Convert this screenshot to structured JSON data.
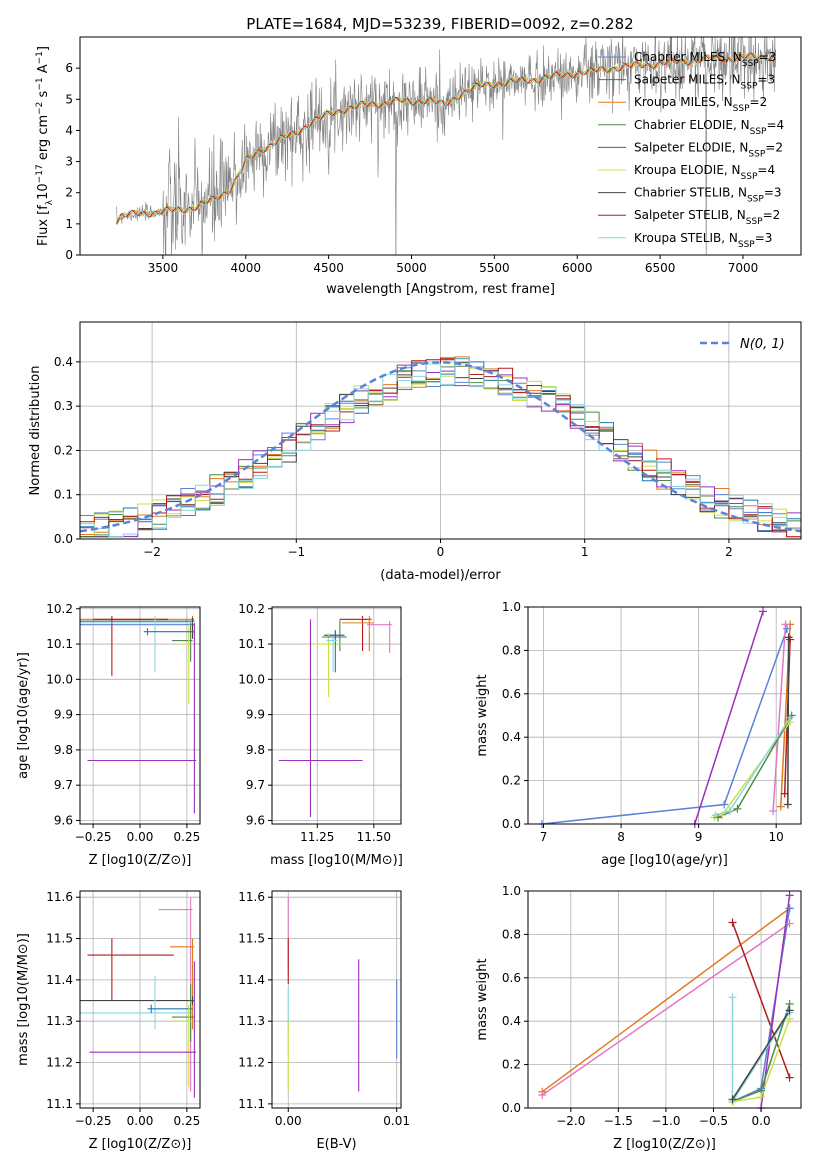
{
  "figure_title": "PLATE=1684, MJD=53239, FIBERID=0092, z=0.282",
  "colors": {
    "chabrier_miles": "#5b82d8",
    "salpeter_miles": "#1f77b4",
    "kroupa_miles": "#e07b1f",
    "chabrier_elodie": "#4f8a4a",
    "salpeter_elodie": "#9b30b9",
    "kroupa_elodie": "#c9e04a",
    "chabrier_stelib": "#444444",
    "salpeter_stelib": "#b31b1b",
    "kroupa_stelib": "#8ad6dc",
    "pink": "#e377c2",
    "data": "#808080",
    "normal": "#5b82d8"
  },
  "legend_models": [
    {
      "key": "chabrier_miles",
      "imf": "Chabrier",
      "lib": "MILES",
      "n": "3"
    },
    {
      "key": "salpeter_miles",
      "imf": "Salpeter",
      "lib": "MILES",
      "n": "3"
    },
    {
      "key": "kroupa_miles",
      "imf": "Kroupa",
      "lib": "MILES",
      "n": "2"
    },
    {
      "key": "chabrier_elodie",
      "imf": "Chabrier",
      "lib": "ELODIE",
      "n": "4"
    },
    {
      "key": "salpeter_elodie",
      "imf": "Salpeter",
      "lib": "ELODIE",
      "n": "2"
    },
    {
      "key": "kroupa_elodie",
      "imf": "Kroupa",
      "lib": "ELODIE",
      "n": "4"
    },
    {
      "key": "chabrier_stelib",
      "imf": "Chabrier",
      "lib": "STELIB",
      "n": "3"
    },
    {
      "key": "salpeter_stelib",
      "imf": "Salpeter",
      "lib": "STELIB",
      "n": "2"
    },
    {
      "key": "kroupa_stelib",
      "imf": "Kroupa",
      "lib": "STELIB",
      "n": "3"
    }
  ],
  "chart_data": [
    {
      "id": "spectrum",
      "type": "line",
      "xlabel": "wavelength [Angstrom, rest frame]",
      "ylabel": "Flux [f",
      "ylabel_sub": "λ",
      "ylabel_rest": "10",
      "ylabel_exp1": "−17",
      "ylabel_mid": " erg cm",
      "ylabel_exp2": "−2",
      "ylabel_mid2": " s",
      "ylabel_exp3": "−1",
      "ylabel_mid3": " A",
      "ylabel_exp4": "−1",
      "ylabel_end": "]",
      "xlim": [
        3000,
        7350
      ],
      "ylim": [
        0,
        7
      ],
      "xticks": [
        3500,
        4000,
        4500,
        5000,
        5500,
        6000,
        6500,
        7000
      ],
      "yticks": [
        0,
        1,
        2,
        3,
        4,
        5,
        6
      ],
      "model_continuum": [
        [
          3220,
          1.1
        ],
        [
          3250,
          1.25
        ],
        [
          3400,
          1.35
        ],
        [
          3500,
          1.4
        ],
        [
          3600,
          1.45
        ],
        [
          3700,
          1.55
        ],
        [
          3800,
          1.75
        ],
        [
          3900,
          2.1
        ],
        [
          3950,
          2.5
        ],
        [
          4000,
          3.0
        ],
        [
          4100,
          3.4
        ],
        [
          4200,
          3.7
        ],
        [
          4300,
          3.9
        ],
        [
          4400,
          4.3
        ],
        [
          4500,
          4.5
        ],
        [
          4600,
          4.7
        ],
        [
          4700,
          4.8
        ],
        [
          4800,
          4.85
        ],
        [
          4900,
          4.95
        ],
        [
          5000,
          4.9
        ],
        [
          5100,
          5.0
        ],
        [
          5200,
          4.8
        ],
        [
          5300,
          5.2
        ],
        [
          5400,
          5.4
        ],
        [
          5500,
          5.5
        ],
        [
          5600,
          5.55
        ],
        [
          5700,
          5.6
        ],
        [
          5800,
          5.7
        ],
        [
          5900,
          5.75
        ],
        [
          6000,
          5.85
        ],
        [
          6100,
          5.9
        ],
        [
          6200,
          6.0
        ],
        [
          6300,
          6.05
        ],
        [
          6400,
          6.1
        ],
        [
          6500,
          6.15
        ],
        [
          6600,
          6.2
        ],
        [
          6700,
          6.25
        ],
        [
          6800,
          6.3
        ],
        [
          6900,
          6.3
        ],
        [
          7000,
          6.35
        ],
        [
          7100,
          6.35
        ],
        [
          7200,
          6.4
        ]
      ]
    },
    {
      "id": "residuals",
      "type": "histogram",
      "xlabel": "(data-model)/error",
      "ylabel": "Normed distribution",
      "xlim": [
        -2.5,
        2.5
      ],
      "ylim": [
        0,
        0.49
      ],
      "xticks": [
        -2,
        -1,
        0,
        1,
        2
      ],
      "yticks": [
        0.0,
        0.1,
        0.2,
        0.3,
        0.4
      ],
      "normal_legend": "N(0, 1)",
      "bin_width": 0.1
    },
    {
      "id": "age_vs_Z",
      "type": "errorbar",
      "xlabel": "Z [log10(Z/Z⊙)]",
      "ylabel": "age  [log10(age/yr)]",
      "xlim": [
        -0.32,
        0.32
      ],
      "ylim": [
        9.59,
        10.205
      ],
      "xticks": [
        -0.25,
        0.0,
        0.25
      ],
      "xticklabels": [
        "−0.25",
        "0.00",
        "0.25"
      ],
      "yticks": [
        9.6,
        9.7,
        9.8,
        9.9,
        10.0,
        10.1,
        10.2
      ],
      "points": [
        {
          "c": "chabrier_miles",
          "x": 0.28,
          "y": 10.155,
          "xerr": [
            0.6,
            0.01
          ],
          "yerr": [
            0.02,
            0.01
          ]
        },
        {
          "c": "kroupa_miles",
          "x": 0.28,
          "y": 10.17,
          "xerr": [
            0.6,
            0.01
          ],
          "yerr": [
            0.01,
            0.01
          ]
        },
        {
          "c": "salpeter_stelib",
          "x": -0.15,
          "y": 10.17,
          "xerr": [
            0.1,
            0.3
          ],
          "yerr": [
            0.16,
            0.01
          ]
        },
        {
          "c": "chabrier_stelib",
          "x": 0.28,
          "y": 10.165,
          "xerr": [
            0.6,
            0.01
          ],
          "yerr": [
            0.05,
            0.01
          ]
        },
        {
          "c": "kroupa_stelib",
          "x": 0.08,
          "y": 10.16,
          "xerr": [
            0.4,
            0.2
          ],
          "yerr": [
            0.14,
            0.02
          ]
        },
        {
          "c": "chabrier_elodie",
          "x": 0.27,
          "y": 10.11,
          "xerr": [
            0.1,
            0.01
          ],
          "yerr": [
            0.06,
            0.05
          ]
        },
        {
          "c": "kroupa_elodie",
          "x": 0.26,
          "y": 10.1,
          "xerr": [
            0.05,
            0.01
          ],
          "yerr": [
            0.17,
            0.05
          ]
        },
        {
          "c": "salpeter_miles",
          "x": 0.04,
          "y": 10.135,
          "xerr": [
            0.02,
            0.25
          ],
          "yerr": [
            0.01,
            0.01
          ]
        },
        {
          "c": "salpeter_elodie",
          "x": 0.29,
          "y": 9.77,
          "xerr": [
            0.57,
            0.01
          ],
          "yerr": [
            0.15,
            0.39
          ]
        }
      ]
    },
    {
      "id": "age_vs_mass",
      "type": "errorbar",
      "xlabel": "mass [log10(M/M⊙)]",
      "ylabel": "",
      "xlim": [
        11.05,
        11.62
      ],
      "ylim": [
        9.59,
        10.205
      ],
      "xticks": [
        11.25,
        11.5
      ],
      "xticklabels": [
        "11.25",
        "11.50"
      ],
      "yticks": [
        9.6,
        9.7,
        9.8,
        9.9,
        10.0,
        10.1,
        10.2
      ],
      "points": [
        {
          "c": "salpeter_stelib",
          "x": 11.45,
          "y": 10.17,
          "xerr": [
            0.1,
            0.04
          ],
          "yerr": [
            0.09,
            0.01
          ]
        },
        {
          "c": "kroupa_miles",
          "x": 11.48,
          "y": 10.16,
          "xerr": [
            0.12,
            0.02
          ],
          "yerr": [
            0.08,
            0.02
          ]
        },
        {
          "c": "pink",
          "x": 11.57,
          "y": 10.155,
          "xerr": [
            0.1,
            0.01
          ],
          "yerr": [
            0.08,
            0.01
          ]
        },
        {
          "c": "chabrier_stelib",
          "x": 11.33,
          "y": 10.125,
          "xerr": [
            0.05,
            0.04
          ],
          "yerr": [
            0.01,
            0.01
          ]
        },
        {
          "c": "chabrier_elodie",
          "x": 11.35,
          "y": 10.12,
          "xerr": [
            0.08,
            0.02
          ],
          "yerr": [
            0.04,
            0.05
          ]
        },
        {
          "c": "kroupa_elodie",
          "x": 11.3,
          "y": 10.1,
          "xerr": [
            0.08,
            0.05
          ],
          "yerr": [
            0.15,
            0.03
          ]
        },
        {
          "c": "salpeter_miles",
          "x": 11.33,
          "y": 10.12,
          "xerr": [
            0.04,
            0.05
          ],
          "yerr": [
            0.1,
            0.02
          ]
        },
        {
          "c": "kroupa_stelib",
          "x": 11.32,
          "y": 10.11,
          "xerr": [
            0.03,
            0.02
          ],
          "yerr": [
            0.09,
            0.01
          ]
        },
        {
          "c": "salpeter_elodie",
          "x": 11.22,
          "y": 9.77,
          "xerr": [
            0.14,
            0.23
          ],
          "yerr": [
            0.16,
            0.4
          ]
        }
      ]
    },
    {
      "id": "weight_vs_age",
      "type": "line",
      "xlabel": "age  [log10(age/yr)]",
      "ylabel": "mass weight",
      "xlim": [
        6.8,
        10.32
      ],
      "ylim": [
        0,
        1
      ],
      "xticks": [
        7,
        8,
        9,
        10
      ],
      "yticks": [
        0.0,
        0.2,
        0.4,
        0.6,
        0.8,
        1.0
      ],
      "series": [
        {
          "c": "chabrier_miles",
          "x": [
            6.98,
            9.33,
            10.14
          ],
          "y": [
            0.0,
            0.09,
            0.9
          ]
        },
        {
          "c": "salpeter_elodie",
          "x": 8.95,
          "y": 0.0,
          "x2": 9.83,
          "y2": 0.98
        },
        {
          "c": "salpeter_stelib",
          "x": [
            10.11,
            10.18
          ],
          "y": [
            0.14,
            0.85
          ]
        },
        {
          "c": "kroupa_miles",
          "x": [
            10.06,
            10.18
          ],
          "y": [
            0.08,
            0.92
          ]
        },
        {
          "c": "pink",
          "x": [
            9.96,
            10.12
          ],
          "y": [
            0.06,
            0.92
          ]
        },
        {
          "c": "chabrier_stelib",
          "x": [
            10.15,
            10.16
          ],
          "y": [
            0.09,
            0.86
          ]
        },
        {
          "c": "kroupa_elodie",
          "x": [
            9.2,
            9.3,
            10.18
          ],
          "y": [
            0.03,
            0.04,
            0.47
          ]
        },
        {
          "c": "chabrier_elodie",
          "x": [
            9.25,
            9.5,
            10.2
          ],
          "y": [
            0.03,
            0.07,
            0.5
          ]
        },
        {
          "c": "kroupa_stelib",
          "x": [
            9.22,
            9.4,
            10.18
          ],
          "y": [
            0.04,
            0.06,
            0.49
          ]
        }
      ]
    },
    {
      "id": "mass_vs_Z",
      "type": "errorbar",
      "xlabel": "Z [log10(Z/Z⊙)]",
      "ylabel": "mass [log10(M/M⊙)]",
      "xlim": [
        -0.32,
        0.32
      ],
      "ylim": [
        11.09,
        11.615
      ],
      "xticks": [
        -0.25,
        0.0,
        0.25
      ],
      "xticklabels": [
        "−0.25",
        "0.00",
        "0.25"
      ],
      "yticks": [
        11.1,
        11.2,
        11.3,
        11.4,
        11.5,
        11.6
      ],
      "points": [
        {
          "c": "pink",
          "x": 0.27,
          "y": 11.57,
          "xerr": [
            0.17,
            0.01
          ],
          "yerr": [
            0.44,
            0.03
          ]
        },
        {
          "c": "kroupa_miles",
          "x": 0.28,
          "y": 11.48,
          "xerr": [
            0.12,
            0.01
          ],
          "yerr": [
            0.2,
            0.02
          ]
        },
        {
          "c": "salpeter_stelib",
          "x": -0.15,
          "y": 11.46,
          "xerr": [
            0.13,
            0.33
          ],
          "yerr": [
            0.11,
            0.04
          ]
        },
        {
          "c": "chabrier_stelib",
          "x": 0.28,
          "y": 11.35,
          "xerr": [
            0.6,
            0.01
          ],
          "yerr": [
            0.01,
            0.01
          ]
        },
        {
          "c": "kroupa_stelib",
          "x": 0.08,
          "y": 11.32,
          "xerr": [
            0.4,
            0.2
          ],
          "yerr": [
            0.04,
            0.09
          ]
        },
        {
          "c": "salpeter_miles",
          "x": 0.06,
          "y": 11.33,
          "xerr": [
            0.02,
            0.22
          ],
          "yerr": [
            0.01,
            0.01
          ]
        },
        {
          "c": "chabrier_elodie",
          "x": 0.27,
          "y": 11.31,
          "xerr": [
            0.1,
            0.02
          ],
          "yerr": [
            0.06,
            0.08
          ]
        },
        {
          "c": "kroupa_elodie",
          "x": 0.26,
          "y": 11.3,
          "xerr": [
            0.1,
            0.02
          ],
          "yerr": [
            0.16,
            0.04
          ]
        },
        {
          "c": "salpeter_elodie",
          "x": 0.29,
          "y": 11.225,
          "xerr": [
            0.56,
            0.01
          ],
          "yerr": [
            0.11,
            0.22
          ]
        }
      ]
    },
    {
      "id": "mass_vs_EBV",
      "type": "errorbar",
      "xlabel": "E(B-V)",
      "ylabel": "",
      "xlim": [
        -0.0015,
        0.0104
      ],
      "ylim": [
        11.09,
        11.615
      ],
      "xticks": [
        0.0,
        0.01
      ],
      "xticklabels": [
        "0.00",
        "0.01"
      ],
      "yticks": [
        11.1,
        11.2,
        11.3,
        11.4,
        11.5,
        11.6
      ],
      "points": [
        {
          "c": "pink",
          "x": 0.0,
          "y": 11.6,
          "xerr": [
            0,
            0
          ],
          "yerr": [
            0.18,
            0.0
          ]
        },
        {
          "c": "salpeter_stelib",
          "x": 0.0,
          "y": 11.45,
          "xerr": [
            0,
            0
          ],
          "yerr": [
            0.06,
            0.05
          ]
        },
        {
          "c": "kroupa_stelib",
          "x": 0.0,
          "y": 11.32,
          "xerr": [
            0,
            0
          ],
          "yerr": [
            0.04,
            0.06
          ]
        },
        {
          "c": "kroupa_elodie",
          "x": 0.0,
          "y": 11.25,
          "xerr": [
            0,
            0
          ],
          "yerr": [
            0.12,
            0.05
          ]
        },
        {
          "c": "salpeter_elodie",
          "x": 0.0065,
          "y": 11.3,
          "xerr": [
            0,
            0
          ],
          "yerr": [
            0.17,
            0.15
          ]
        },
        {
          "c": "chabrier_miles",
          "x": 0.01,
          "y": 11.3,
          "xerr": [
            0,
            0
          ],
          "yerr": [
            0.09,
            0.1
          ]
        }
      ]
    },
    {
      "id": "weight_vs_Z",
      "type": "line",
      "xlabel": "Z [log10(Z/Z⊙)]",
      "ylabel": "mass weight",
      "xlim": [
        -2.45,
        0.42
      ],
      "ylim": [
        0,
        1
      ],
      "xticks": [
        -2.0,
        -1.5,
        -1.0,
        -0.5,
        0.0
      ],
      "xticklabels": [
        "−2.0",
        "−1.5",
        "−1.0",
        "−0.5",
        "0.0"
      ],
      "yticks": [
        0.0,
        0.2,
        0.4,
        0.6,
        0.8,
        1.0
      ],
      "series": [
        {
          "c": "kroupa_miles",
          "x": [
            -2.3,
            0.3
          ],
          "y": [
            0.075,
            0.92
          ]
        },
        {
          "c": "pink",
          "x": [
            -2.3,
            0.3
          ],
          "y": [
            0.06,
            0.85
          ]
        },
        {
          "c": "salpeter_stelib",
          "x": [
            -0.3,
            0.3
          ],
          "y": [
            0.855,
            0.14
          ]
        },
        {
          "c": "chabrier_miles",
          "x": [
            -0.3,
            0.0,
            0.3
          ],
          "y": [
            0.03,
            0.09,
            0.92
          ]
        },
        {
          "c": "salpeter_elodie",
          "x": [
            0.0,
            0.3
          ],
          "y": [
            0.0,
            0.98
          ]
        },
        {
          "c": "kroupa_stelib",
          "x": [
            -0.3,
            -0.3,
            0.3
          ],
          "y": [
            0.51,
            0.03,
            0.44
          ]
        },
        {
          "c": "chabrier_elodie",
          "x": [
            -0.3,
            0.0,
            0.3
          ],
          "y": [
            0.03,
            0.08,
            0.48
          ]
        },
        {
          "c": "kroupa_elodie",
          "x": [
            -0.3,
            0.0,
            0.3
          ],
          "y": [
            0.03,
            0.05,
            0.41
          ]
        },
        {
          "c": "chabrier_stelib",
          "x": [
            -0.3,
            0.3
          ],
          "y": [
            0.04,
            0.45
          ]
        }
      ]
    }
  ]
}
